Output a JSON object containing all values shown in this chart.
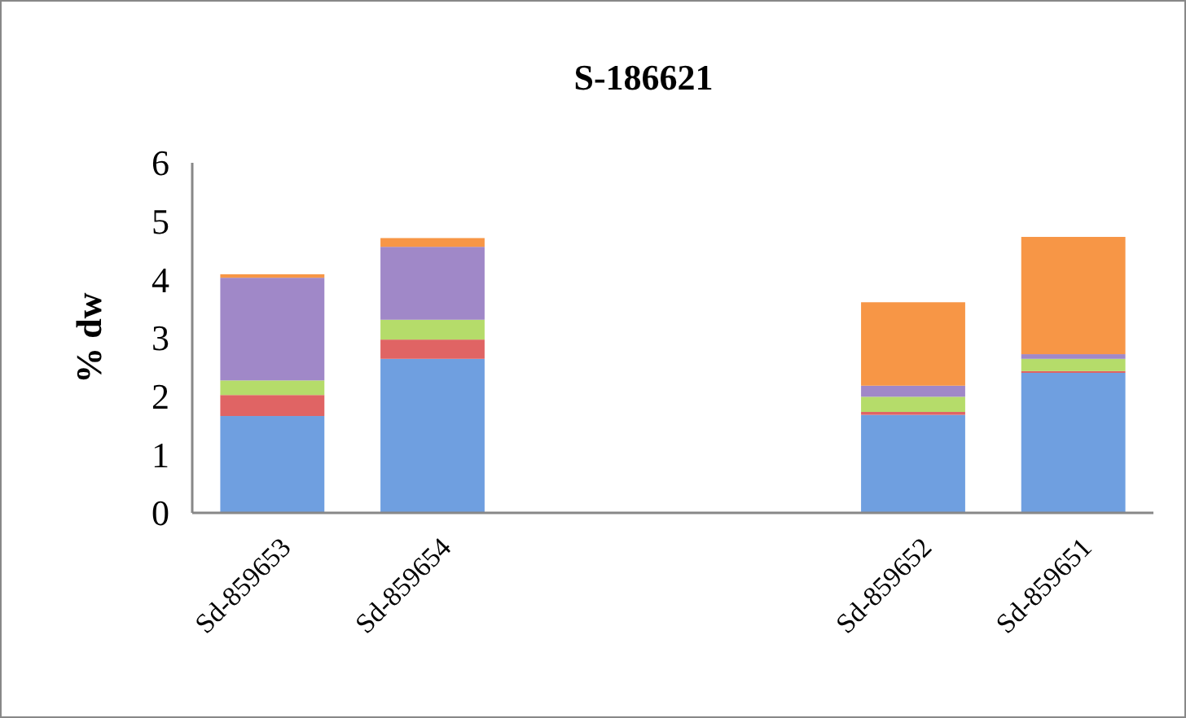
{
  "chart_data": {
    "type": "bar",
    "title": "S-186621",
    "ylabel": "% dw",
    "stacked": true,
    "categories": [
      "Sd-859653",
      "Sd-859654",
      null,
      null,
      "Sd-859652",
      "Sd-859651"
    ],
    "series": [
      {
        "color": "#6f9fe0",
        "values": [
          1.66,
          2.64,
          null,
          null,
          1.68,
          2.4
        ]
      },
      {
        "color": "#e06464",
        "values": [
          0.36,
          0.33,
          null,
          null,
          0.05,
          0.03
        ]
      },
      {
        "color": "#b5dc6a",
        "values": [
          0.25,
          0.34,
          null,
          null,
          0.26,
          0.21
        ]
      },
      {
        "color": "#a088c8",
        "values": [
          1.76,
          1.25,
          null,
          null,
          0.19,
          0.08
        ]
      },
      {
        "color": "#f79646",
        "values": [
          0.06,
          0.15,
          null,
          null,
          1.43,
          2.01
        ]
      }
    ],
    "ylim": [
      0,
      6
    ],
    "yticks": [
      0,
      1,
      2,
      3,
      4,
      5,
      6
    ],
    "grid": false
  }
}
